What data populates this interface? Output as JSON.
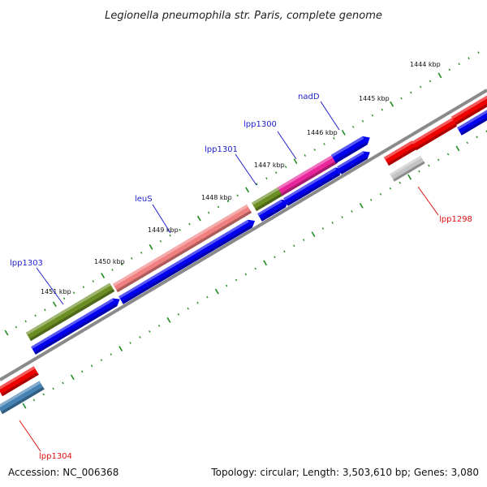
{
  "title": "Legionella pneumophila str. Paris, complete genome",
  "accession": "Accession: NC_006368",
  "summary": "Topology: circular; Length: 3,503,610 bp; Genes: 3,080",
  "colors": {
    "backbone": "#8c8c8c",
    "tick": "#228b22",
    "label_blue": "#1f1fd0",
    "label_red": "#e01010",
    "blue": "#0000ee",
    "red": "#ee0000",
    "olive": "#6b8e23",
    "pink": "#f08080",
    "magenta": "#e8259a",
    "grey": "#c4c4c4",
    "steel": "#4682b4"
  },
  "kbp_ticks": [
    "1444 kbp",
    "1445 kbp",
    "1446 kbp",
    "1447 kbp",
    "1448 kbp",
    "1449 kbp",
    "1450 kbp",
    "1451 kbp"
  ],
  "gene_labels": {
    "nadD": "nadD",
    "lpp1300": "lpp1300",
    "lpp1301": "lpp1301",
    "leuS": "leuS",
    "lpp1303": "lpp1303",
    "lpp1298": "lpp1298",
    "lpp1304": "lpp1304"
  }
}
